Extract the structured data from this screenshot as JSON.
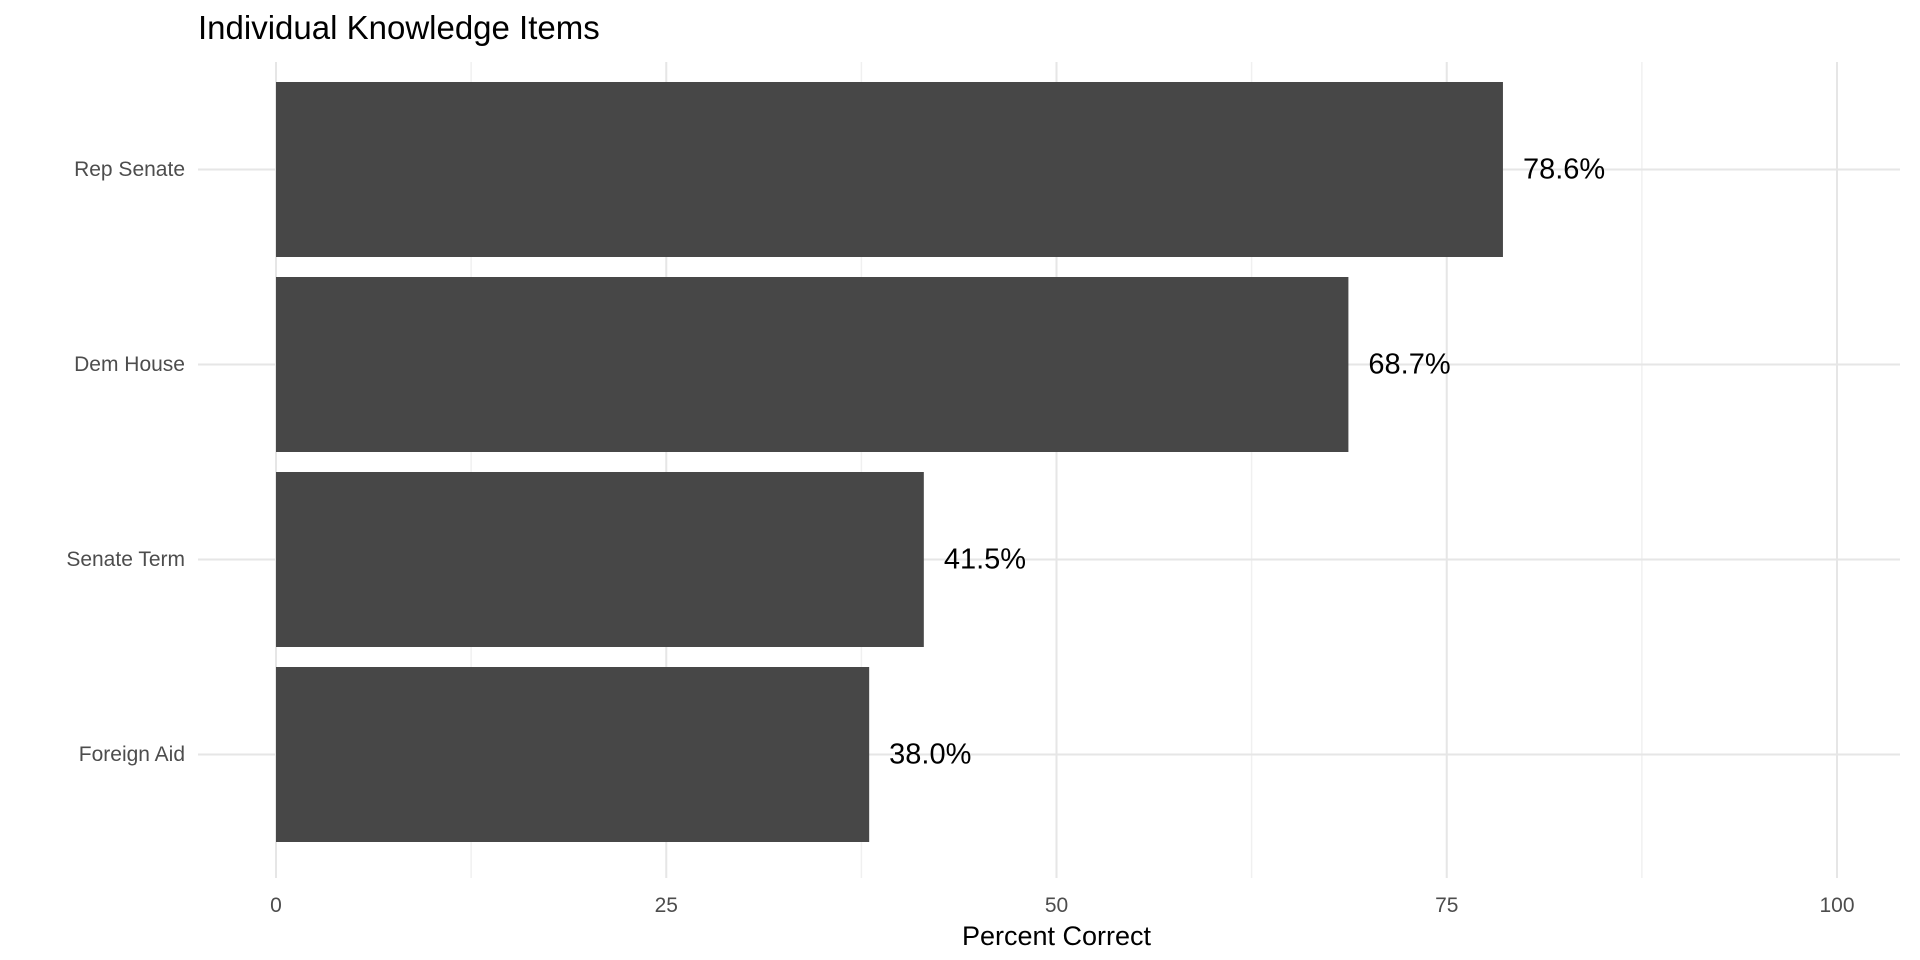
{
  "chart_data": {
    "type": "bar",
    "orientation": "horizontal",
    "title": "Individual Knowledge Items",
    "xlabel": "Percent Correct",
    "ylabel": "",
    "categories": [
      "Rep Senate",
      "Dem House",
      "Senate Term",
      "Foreign Aid"
    ],
    "values": [
      78.6,
      68.7,
      41.5,
      38.0
    ],
    "data_labels": [
      "78.6%",
      "68.7%",
      "41.5%",
      "38.0%"
    ],
    "xlim": [
      0,
      100
    ],
    "x_ticks": [
      0,
      25,
      50,
      75,
      100
    ],
    "x_tick_labels": [
      "0",
      "25",
      "50",
      "75",
      "100"
    ],
    "grid": true,
    "legend": "none",
    "colors": {
      "bar": "#474747",
      "grid_major": "#e6e6e6",
      "grid_minor": "#f0f0f0",
      "tick_text": "#4d4d4d",
      "text": "#000000"
    }
  }
}
